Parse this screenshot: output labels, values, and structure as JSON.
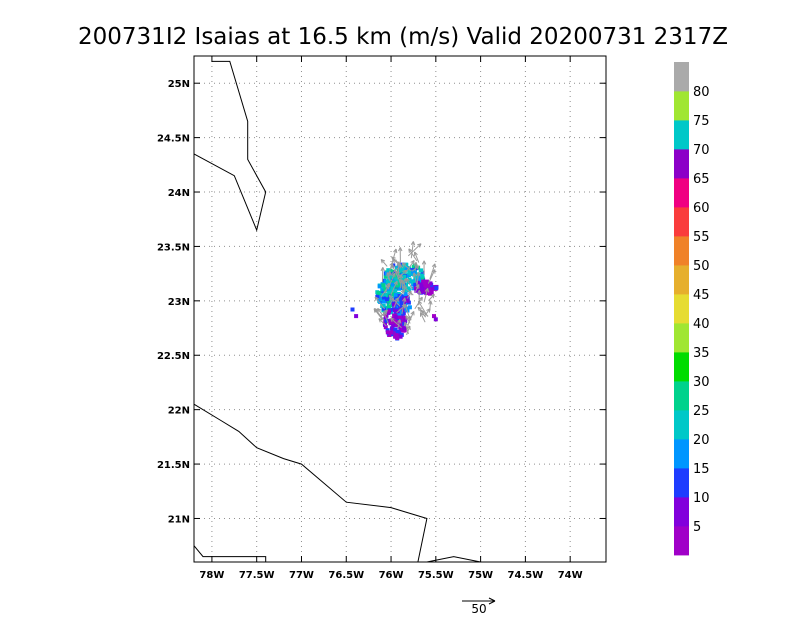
{
  "title": "200731I2 Isaias at 16.5 km (m/s) Valid 20200731  2317Z",
  "map": {
    "lon_range": [
      -78.2,
      -73.6
    ],
    "lat_range": [
      20.6,
      25.25
    ],
    "lon_ticks": [
      {
        "value": -78.0,
        "label": "78W"
      },
      {
        "value": -77.5,
        "label": "77.5W"
      },
      {
        "value": -77.0,
        "label": "77W"
      },
      {
        "value": -76.5,
        "label": "76.5W"
      },
      {
        "value": -76.0,
        "label": "76W"
      },
      {
        "value": -75.5,
        "label": "75.5W"
      },
      {
        "value": -75.0,
        "label": "75W"
      },
      {
        "value": -74.5,
        "label": "74.5W"
      },
      {
        "value": -74.0,
        "label": "74W"
      }
    ],
    "lat_ticks": [
      {
        "value": 21.0,
        "label": "21N"
      },
      {
        "value": 21.5,
        "label": "21.5N"
      },
      {
        "value": 22.0,
        "label": "22N"
      },
      {
        "value": 22.5,
        "label": "22.5N"
      },
      {
        "value": 23.0,
        "label": "23N"
      },
      {
        "value": 23.5,
        "label": "23.5N"
      },
      {
        "value": 24.0,
        "label": "24N"
      },
      {
        "value": 24.5,
        "label": "24.5N"
      },
      {
        "value": 25.0,
        "label": "25N"
      }
    ],
    "grid": "dotted",
    "coastlines": [
      [
        [
          -78.0,
          25.2
        ],
        [
          -77.8,
          25.2
        ],
        [
          -77.6,
          24.65
        ],
        [
          -77.6,
          24.3
        ],
        [
          -77.4,
          24.0
        ],
        [
          -77.5,
          23.65
        ],
        [
          -77.75,
          24.15
        ],
        [
          -78.2,
          24.35
        ]
      ],
      [
        [
          -78.2,
          22.05
        ],
        [
          -77.9,
          21.9
        ],
        [
          -77.7,
          21.8
        ],
        [
          -77.5,
          21.65
        ],
        [
          -77.2,
          21.55
        ],
        [
          -77.0,
          21.5
        ],
        [
          -76.5,
          21.15
        ],
        [
          -76.0,
          21.1
        ],
        [
          -75.6,
          21.0
        ],
        [
          -75.7,
          20.6
        ]
      ],
      [
        [
          -75.6,
          20.6
        ],
        [
          -75.3,
          20.65
        ],
        [
          -75.0,
          20.6
        ]
      ],
      [
        [
          -78.2,
          20.75
        ],
        [
          -78.1,
          20.65
        ],
        [
          -77.4,
          20.65
        ],
        [
          -77.4,
          20.6
        ]
      ]
    ]
  },
  "colorbar": {
    "colors": [
      "#a000c8",
      "#8200dc",
      "#1e3cff",
      "#0096ff",
      "#00c8c8",
      "#00d28c",
      "#00dc00",
      "#a0e632",
      "#e6dc32",
      "#e6af2d",
      "#f08228",
      "#fa3c3c",
      "#f00082",
      "#8c00c8",
      "#00c8c8",
      "#a0e632",
      "#aaaaaa"
    ],
    "labels": [
      "5",
      "10",
      "15",
      "20",
      "25",
      "30",
      "35",
      "40",
      "45",
      "50",
      "55",
      "60",
      "65",
      "70",
      "75",
      "80"
    ]
  },
  "reference_vector": {
    "value": 50,
    "label": "50"
  }
}
